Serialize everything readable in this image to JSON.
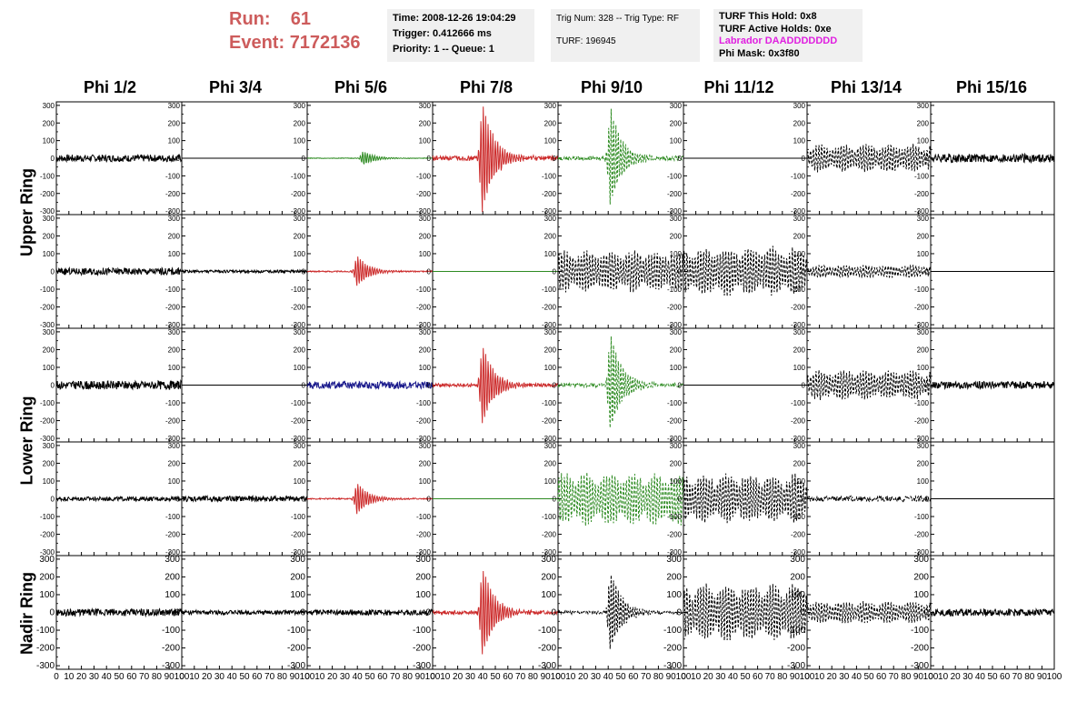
{
  "header": {
    "run_label": "Run:",
    "run_value": "61",
    "event_label": "Event:",
    "event_value": "7172136",
    "time": "Time: 2008-12-26 19:04:29",
    "trigger": "Trigger: 0.412666 ms",
    "priority": "Priority: 1 -- Queue: 1",
    "trig_num": "Trig Num: 328 -- Trig Type: RF",
    "turf": "TURF: 196945",
    "turf_this_hold": "TURF This Hold: 0x8",
    "turf_active_holds": "TURF Active Holds: 0xe",
    "labrador": "Labrador DAADDDDDDD",
    "phi_mask": "Phi Mask: 0x3f80"
  },
  "columns": [
    "Phi 1/2",
    "Phi 3/4",
    "Phi 5/6",
    "Phi 7/8",
    "Phi 9/10",
    "Phi 11/12",
    "Phi 13/14",
    "Phi 15/16"
  ],
  "rings": [
    "Upper Ring",
    "Lower Ring",
    "Nadir Ring"
  ],
  "colors": {
    "black": "#000000",
    "green": "#2e8b22",
    "red": "#cc2a2a",
    "blue": "#1a1a8c",
    "run_text": "#cd5c5c",
    "labrador_text": "#e020e0",
    "info_bg": "#f0f0f0"
  },
  "chart_data": {
    "type": "line",
    "xlim": [
      0,
      100
    ],
    "ylim": [
      -320,
      320
    ],
    "y_ticks": [
      -300,
      -200,
      -100,
      0,
      100,
      200,
      300
    ],
    "x_ticks": [
      0,
      10,
      20,
      30,
      40,
      50,
      60,
      70,
      80,
      90,
      100
    ],
    "grid": false,
    "rows": [
      {
        "ring": "Upper Ring",
        "panels": [
          {
            "col": "Phi 1/2",
            "color": "black",
            "style": "solid",
            "amp": 25,
            "shape": "noise"
          },
          {
            "col": "Phi 3/4",
            "color": "black",
            "style": "solid",
            "amp": 0,
            "shape": "flat"
          },
          {
            "col": "Phi 5/6",
            "color": "green",
            "style": "solid",
            "amp": 40,
            "shape": "pulse",
            "center": 45
          },
          {
            "col": "Phi 7/8",
            "color": "red",
            "style": "solid",
            "amp": 320,
            "shape": "pulse",
            "center": 40
          },
          {
            "col": "Phi 9/10",
            "color": "green",
            "style": "dashed",
            "amp": 290,
            "shape": "pulse",
            "center": 42
          },
          {
            "col": "Phi 11/12",
            "color": "black",
            "style": "solid",
            "amp": 0,
            "shape": "flat"
          },
          {
            "col": "Phi 13/14",
            "color": "black",
            "style": "dashed",
            "amp": 75,
            "shape": "beat"
          },
          {
            "col": "Phi 15/16",
            "color": "black",
            "style": "solid",
            "amp": 30,
            "shape": "noise"
          }
        ]
      },
      {
        "ring": "Upper Ring",
        "panels": [
          {
            "col": "Phi 1/2",
            "color": "black",
            "style": "solid",
            "amp": 25,
            "shape": "noise"
          },
          {
            "col": "Phi 3/4",
            "color": "black",
            "style": "solid",
            "amp": 10,
            "shape": "noise"
          },
          {
            "col": "Phi 5/6",
            "color": "red",
            "style": "solid",
            "amp": 90,
            "shape": "pulse",
            "center": 40
          },
          {
            "col": "Phi 7/8",
            "color": "green",
            "style": "solid",
            "amp": 0,
            "shape": "flat"
          },
          {
            "col": "Phi 9/10",
            "color": "black",
            "style": "dashed",
            "amp": 110,
            "shape": "beat"
          },
          {
            "col": "Phi 11/12",
            "color": "black",
            "style": "dashed",
            "amp": 130,
            "shape": "beat"
          },
          {
            "col": "Phi 13/14",
            "color": "black",
            "style": "dashed",
            "amp": 35,
            "shape": "beat"
          },
          {
            "col": "Phi 15/16",
            "color": "black",
            "style": "solid",
            "amp": 0,
            "shape": "flat"
          }
        ]
      },
      {
        "ring": "Lower Ring",
        "panels": [
          {
            "col": "Phi 1/2",
            "color": "black",
            "style": "solid",
            "amp": 30,
            "shape": "noise"
          },
          {
            "col": "Phi 3/4",
            "color": "black",
            "style": "solid",
            "amp": 0,
            "shape": "flat"
          },
          {
            "col": "Phi 5/6",
            "color": "blue",
            "style": "solid",
            "amp": 25,
            "shape": "noise"
          },
          {
            "col": "Phi 7/8",
            "color": "red",
            "style": "solid",
            "amp": 230,
            "shape": "pulse",
            "center": 40
          },
          {
            "col": "Phi 9/10",
            "color": "green",
            "style": "dashed",
            "amp": 280,
            "shape": "pulse",
            "center": 42
          },
          {
            "col": "Phi 11/12",
            "color": "black",
            "style": "solid",
            "amp": 0,
            "shape": "flat"
          },
          {
            "col": "Phi 13/14",
            "color": "black",
            "style": "dashed",
            "amp": 80,
            "shape": "beat"
          },
          {
            "col": "Phi 15/16",
            "color": "black",
            "style": "solid",
            "amp": 25,
            "shape": "noise"
          }
        ]
      },
      {
        "ring": "Lower Ring",
        "panels": [
          {
            "col": "Phi 1/2",
            "color": "black",
            "style": "solid",
            "amp": 15,
            "shape": "noise"
          },
          {
            "col": "Phi 3/4",
            "color": "black",
            "style": "solid",
            "amp": 20,
            "shape": "noise"
          },
          {
            "col": "Phi 5/6",
            "color": "red",
            "style": "solid",
            "amp": 90,
            "shape": "pulse",
            "center": 40
          },
          {
            "col": "Phi 7/8",
            "color": "green",
            "style": "solid",
            "amp": 0,
            "shape": "flat"
          },
          {
            "col": "Phi 9/10",
            "color": "green",
            "style": "dashed",
            "amp": 140,
            "shape": "beat"
          },
          {
            "col": "Phi 11/12",
            "color": "black",
            "style": "dashed",
            "amp": 130,
            "shape": "beat"
          },
          {
            "col": "Phi 13/14",
            "color": "black",
            "style": "dashed",
            "amp": 20,
            "shape": "noise"
          },
          {
            "col": "Phi 15/16",
            "color": "black",
            "style": "solid",
            "amp": 0,
            "shape": "flat"
          }
        ]
      },
      {
        "ring": "Nadir Ring",
        "panels": [
          {
            "col": "Phi 1/2",
            "color": "black",
            "style": "solid",
            "amp": 25,
            "shape": "noise"
          },
          {
            "col": "Phi 3/4",
            "color": "black",
            "style": "solid",
            "amp": 15,
            "shape": "noise"
          },
          {
            "col": "Phi 5/6",
            "color": "black",
            "style": "solid",
            "amp": 20,
            "shape": "noise"
          },
          {
            "col": "Phi 7/8",
            "color": "red",
            "style": "solid",
            "amp": 260,
            "shape": "pulse",
            "center": 40
          },
          {
            "col": "Phi 9/10",
            "color": "black",
            "style": "dashed",
            "amp": 230,
            "shape": "pulse",
            "center": 42
          },
          {
            "col": "Phi 11/12",
            "color": "black",
            "style": "dashed",
            "amp": 150,
            "shape": "beat"
          },
          {
            "col": "Phi 13/14",
            "color": "black",
            "style": "dashed",
            "amp": 60,
            "shape": "beat"
          },
          {
            "col": "Phi 15/16",
            "color": "black",
            "style": "solid",
            "amp": 25,
            "shape": "noise"
          }
        ]
      }
    ]
  }
}
